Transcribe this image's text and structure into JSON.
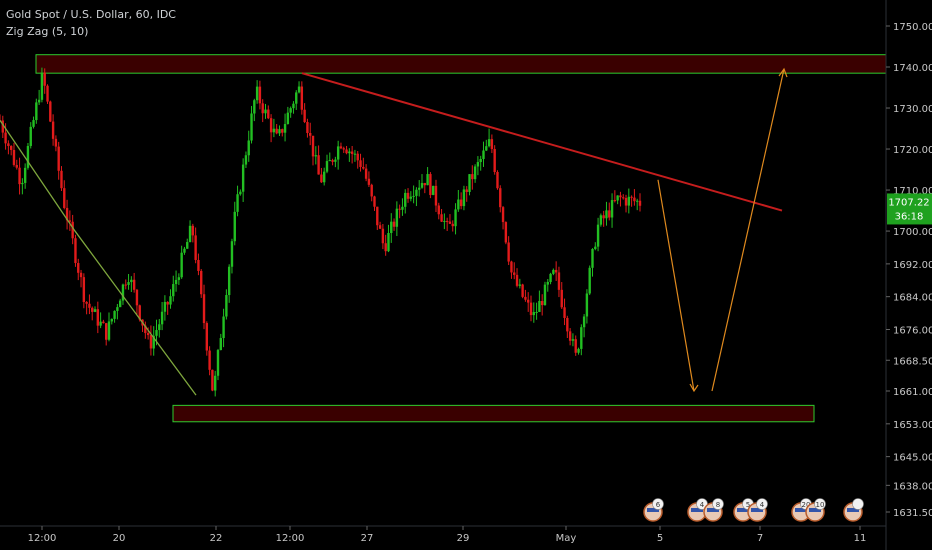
{
  "legend": {
    "symbol_line": "Gold Spot / U.S. Dollar, 60, IDC",
    "indicator_line": "Zig Zag (5, 10)"
  },
  "price_badge": {
    "price": "1707.22",
    "countdown": "36:18",
    "color": "#1fa11f"
  },
  "chart_data": {
    "type": "candlestick",
    "y_axis": {
      "range": [
        1627,
        1757
      ],
      "ticks": [
        "1750.00",
        "1740.00",
        "1730.00",
        "1720.00",
        "1710.00",
        "1700.00",
        "1692.00",
        "1684.00",
        "1676.00",
        "1668.50",
        "1661.00",
        "1653.00",
        "1645.00",
        "1638.00",
        "1631.50"
      ]
    },
    "x_axis": {
      "labels": [
        "12:00",
        "20",
        "22",
        "12:00",
        "27",
        "29",
        "May",
        "5",
        "7",
        "11"
      ]
    },
    "colors": {
      "up": "#22bf22",
      "down": "#e31b1b",
      "zone_fill": "#3a0000",
      "zone_border": "#2ecc2e",
      "resistance_line": "#c51d1d",
      "projection_arrow": "#e08a1e",
      "zigzag": "#7ea63d"
    },
    "price_path": [
      1727,
      1712,
      1738,
      1707,
      1683,
      1675,
      1690,
      1672,
      1684,
      1701,
      1660,
      1703,
      1734,
      1722,
      1735,
      1712,
      1722,
      1716,
      1696,
      1709,
      1713,
      1700,
      1712,
      1722,
      1689,
      1679,
      1690,
      1669,
      1701,
      1708,
      1707
    ],
    "zones": [
      {
        "name": "resistance zone",
        "low": 1738.5,
        "high": 1743.0
      },
      {
        "name": "support zone",
        "low": 1653.5,
        "high": 1657.5
      }
    ],
    "resistance_trendline": {
      "start": 1738.5,
      "end": 1705.0
    },
    "projection_path": [
      1712.5,
      1661.0,
      1739.5
    ],
    "event_markers": [
      "6",
      "4",
      "8",
      "5",
      "4",
      "20",
      "10"
    ]
  }
}
